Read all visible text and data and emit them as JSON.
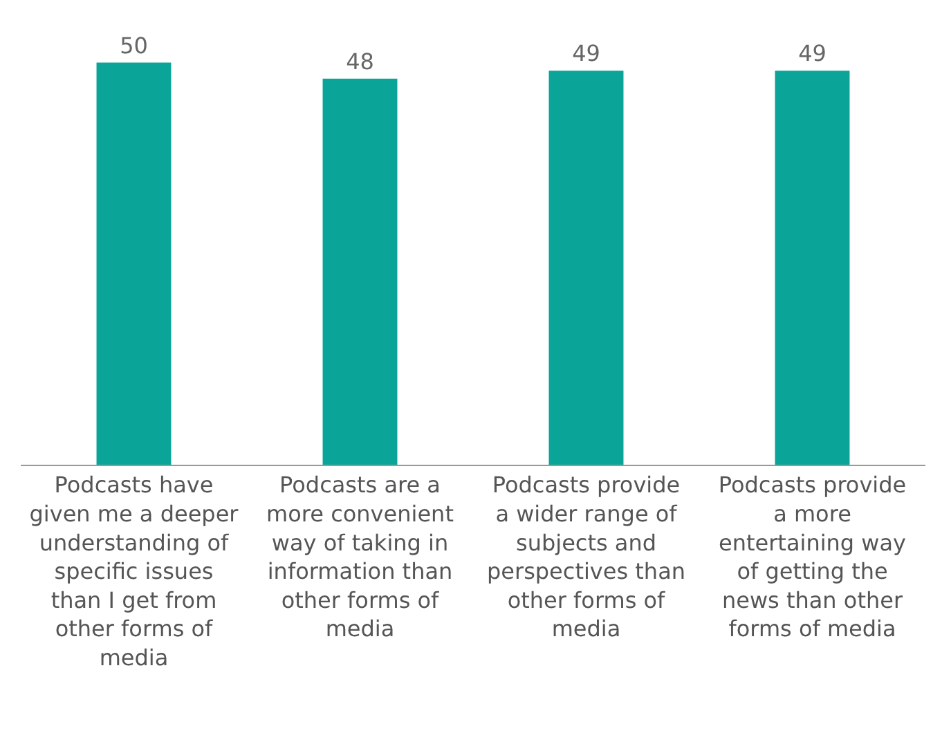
{
  "chart_data": {
    "type": "bar",
    "categories": [
      "Podcasts have given me a deeper understanding of specific issues than I get from other forms of media",
      "Podcasts are a more convenient way of taking in information than other forms of media",
      "Podcasts provide a wider range of subjects and perspectives than other forms of media",
      "Podcasts provide a more entertaining way of getting the news than other forms of media"
    ],
    "values": [
      50,
      48,
      49,
      49
    ],
    "color": "#0aa598",
    "data_labels": true
  }
}
